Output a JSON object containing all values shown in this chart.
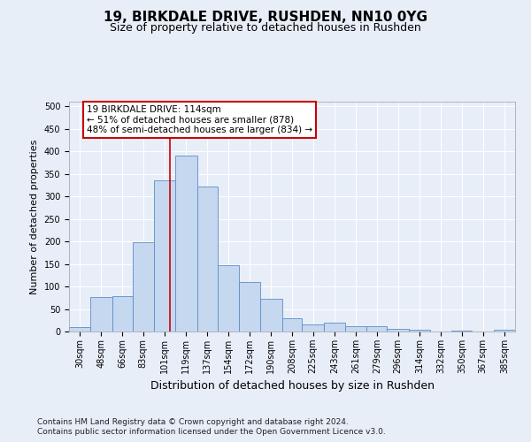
{
  "title": "19, BIRKDALE DRIVE, RUSHDEN, NN10 0YG",
  "subtitle": "Size of property relative to detached houses in Rushden",
  "xlabel": "Distribution of detached houses by size in Rushden",
  "ylabel": "Number of detached properties",
  "footnote1": "Contains HM Land Registry data © Crown copyright and database right 2024.",
  "footnote2": "Contains public sector information licensed under the Open Government Licence v3.0.",
  "bin_labels": [
    "30sqm",
    "48sqm",
    "66sqm",
    "83sqm",
    "101sqm",
    "119sqm",
    "137sqm",
    "154sqm",
    "172sqm",
    "190sqm",
    "208sqm",
    "225sqm",
    "243sqm",
    "261sqm",
    "279sqm",
    "296sqm",
    "314sqm",
    "332sqm",
    "350sqm",
    "367sqm",
    "385sqm"
  ],
  "bin_edges": [
    30,
    48,
    66,
    83,
    101,
    119,
    137,
    154,
    172,
    190,
    208,
    225,
    243,
    261,
    279,
    296,
    314,
    332,
    350,
    367,
    385,
    403
  ],
  "bar_values": [
    9,
    77,
    78,
    198,
    335,
    390,
    322,
    148,
    110,
    73,
    30,
    15,
    20,
    11,
    12,
    5,
    4,
    0,
    1,
    0,
    3
  ],
  "bar_color": "#c5d8f0",
  "bar_edge_color": "#5b8dc8",
  "property_size": 114,
  "red_line_color": "#cc0000",
  "annotation_line1": "19 BIRKDALE DRIVE: 114sqm",
  "annotation_line2": "← 51% of detached houses are smaller (878)",
  "annotation_line3": "48% of semi-detached houses are larger (834) →",
  "annotation_box_color": "white",
  "annotation_box_edge_color": "#cc0000",
  "ylim": [
    0,
    510
  ],
  "yticks": [
    0,
    50,
    100,
    150,
    200,
    250,
    300,
    350,
    400,
    450,
    500
  ],
  "bg_color": "#e8eef8",
  "title_fontsize": 11,
  "subtitle_fontsize": 9,
  "xlabel_fontsize": 9,
  "ylabel_fontsize": 8,
  "tick_fontsize": 7,
  "annotation_fontsize": 7.5,
  "footnote_fontsize": 6.5
}
